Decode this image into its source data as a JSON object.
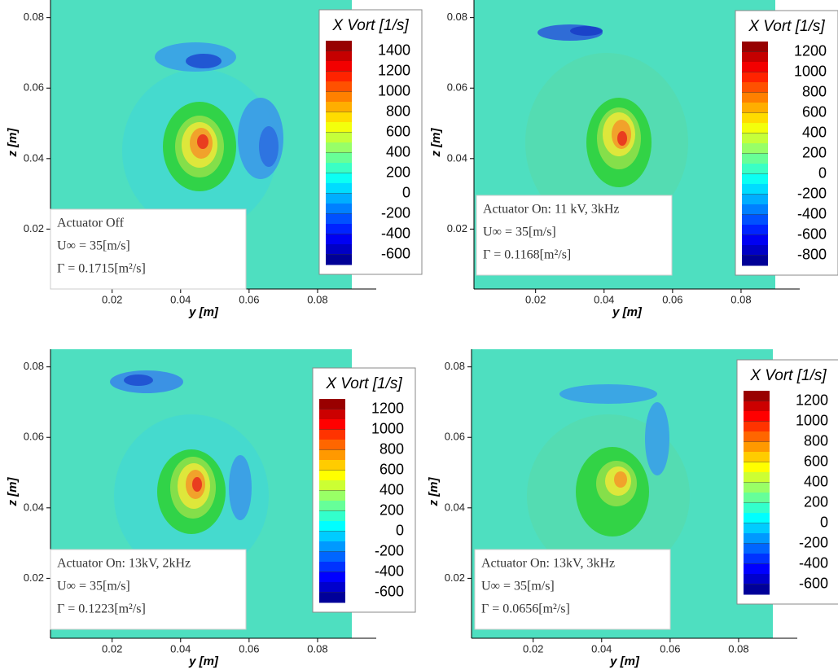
{
  "chart_data": [
    {
      "type": "contour",
      "colorbar_title": "X Vort [1/s]",
      "colorbar_ticks": [
        1400,
        1200,
        1000,
        800,
        600,
        400,
        200,
        0,
        -200,
        -400,
        -600
      ],
      "colorbar_lim": [
        -700,
        1500
      ],
      "xlabel": "y [m]",
      "ylabel": "z [m]",
      "xticks": [
        0.02,
        0.04,
        0.06,
        0.08
      ],
      "yticks": [
        0.02,
        0.04,
        0.06,
        0.08
      ],
      "xlim": [
        0.002,
        0.09
      ],
      "ylim": [
        0.003,
        0.085
      ],
      "annotations": [
        "Actuator Off",
        "U∞ = 35[m/s]",
        "Γ = 0.1715[m²/s]"
      ]
    },
    {
      "type": "contour",
      "colorbar_title": "X Vort [1/s]",
      "colorbar_ticks": [
        1200,
        1000,
        800,
        600,
        400,
        200,
        0,
        -200,
        -400,
        -600,
        -800
      ],
      "colorbar_lim": [
        -900,
        1300
      ],
      "xlabel": "y [m]",
      "ylabel": "z [m]",
      "xticks": [
        0.02,
        0.04,
        0.06,
        0.08
      ],
      "yticks": [
        0.02,
        0.04,
        0.06,
        0.08
      ],
      "xlim": [
        0.002,
        0.09
      ],
      "ylim": [
        0.003,
        0.085
      ],
      "annotations": [
        "Actuator On: 11 kV, 3kHz",
        "U∞ = 35[m/s]",
        "Γ = 0.1168[m²/s]"
      ]
    },
    {
      "type": "contour",
      "colorbar_title": "X Vort [1/s]",
      "colorbar_ticks": [
        1200,
        1000,
        800,
        600,
        400,
        200,
        0,
        -200,
        -400,
        -600
      ],
      "colorbar_lim": [
        -700,
        1300
      ],
      "xlabel": "y [m]",
      "ylabel": "z [m]",
      "xticks": [
        0.02,
        0.04,
        0.06,
        0.08
      ],
      "yticks": [
        0.02,
        0.04,
        0.06,
        0.08
      ],
      "xlim": [
        0.002,
        0.09
      ],
      "ylim": [
        0.003,
        0.085
      ],
      "annotations": [
        "Actuator On: 13kV, 2kHz",
        "U∞ = 35[m/s]",
        "Γ = 0.1223[m²/s]"
      ]
    },
    {
      "type": "contour",
      "colorbar_title": "X Vort [1/s]",
      "colorbar_ticks": [
        1200,
        1000,
        800,
        600,
        400,
        200,
        0,
        -200,
        -400,
        -600
      ],
      "colorbar_lim": [
        -700,
        1300
      ],
      "xlabel": "y [m]",
      "ylabel": "z [m]",
      "xticks": [
        0.02,
        0.04,
        0.06,
        0.08
      ],
      "yticks": [
        0.02,
        0.04,
        0.06,
        0.08
      ],
      "xlim": [
        0.002,
        0.09
      ],
      "ylim": [
        0.003,
        0.085
      ],
      "annotations": [
        "Actuator On: 13kV, 3kHz",
        "U∞ = 35[m/s]",
        "Γ = 0.0656[m²/s]"
      ]
    }
  ]
}
